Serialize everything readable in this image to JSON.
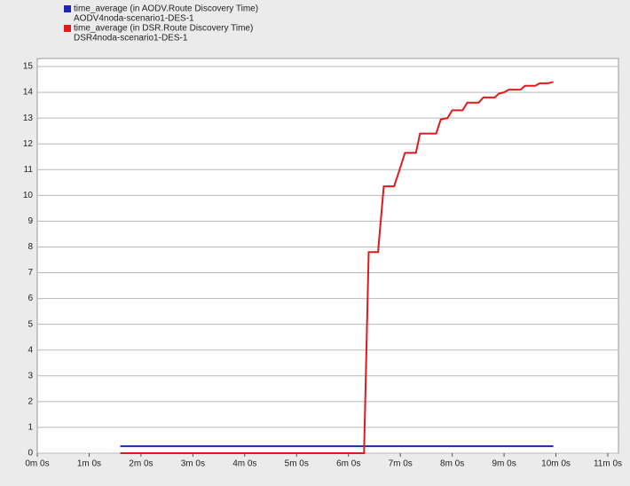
{
  "chart_data": {
    "type": "line",
    "series": [
      {
        "name": "time_average (in AODV.Route Discovery Time)",
        "scenario": "AODV4noda-scenario1-DES-1",
        "color": "#1f24b4",
        "x": [
          1.6,
          9.95
        ],
        "values": [
          0.27,
          0.27
        ]
      },
      {
        "name": "time_average (in DSR.Route Discovery Time)",
        "scenario": "DSR4noda-scenario1-DES-1",
        "color": "#e0191b",
        "x": [
          1.6,
          6.3,
          6.39,
          6.57,
          6.68,
          6.88,
          7.09,
          7.3,
          7.38,
          7.69,
          7.78,
          7.91,
          8.0,
          8.2,
          8.29,
          8.51,
          8.6,
          8.82,
          8.9,
          9.0,
          9.09,
          9.32,
          9.4,
          9.6,
          9.69,
          9.85,
          9.95
        ],
        "values": [
          0,
          0,
          7.8,
          7.8,
          10.35,
          10.35,
          11.65,
          11.65,
          12.4,
          12.4,
          12.95,
          13.0,
          13.3,
          13.3,
          13.6,
          13.6,
          13.8,
          13.8,
          13.95,
          14.0,
          14.1,
          14.1,
          14.25,
          14.25,
          14.35,
          14.35,
          14.4
        ]
      }
    ],
    "xlim": [
      0,
      11
    ],
    "xticks": [
      {
        "value": 0,
        "label": "0m 0s"
      },
      {
        "value": 1,
        "label": "1m 0s"
      },
      {
        "value": 2,
        "label": "2m 0s"
      },
      {
        "value": 3,
        "label": "3m 0s"
      },
      {
        "value": 4,
        "label": "4m 0s"
      },
      {
        "value": 5,
        "label": "5m 0s"
      },
      {
        "value": 6,
        "label": "6m 0s"
      },
      {
        "value": 7,
        "label": "7m 0s"
      },
      {
        "value": 8,
        "label": "8m 0s"
      },
      {
        "value": 9,
        "label": "9m 0s"
      },
      {
        "value": 10,
        "label": "10m 0s"
      },
      {
        "value": 11,
        "label": "11m 0s"
      }
    ],
    "ylim": [
      0,
      15
    ],
    "yticks": [
      0,
      1,
      2,
      3,
      4,
      5,
      6,
      7,
      8,
      9,
      10,
      11,
      12,
      13,
      14,
      15
    ],
    "grid": true
  }
}
